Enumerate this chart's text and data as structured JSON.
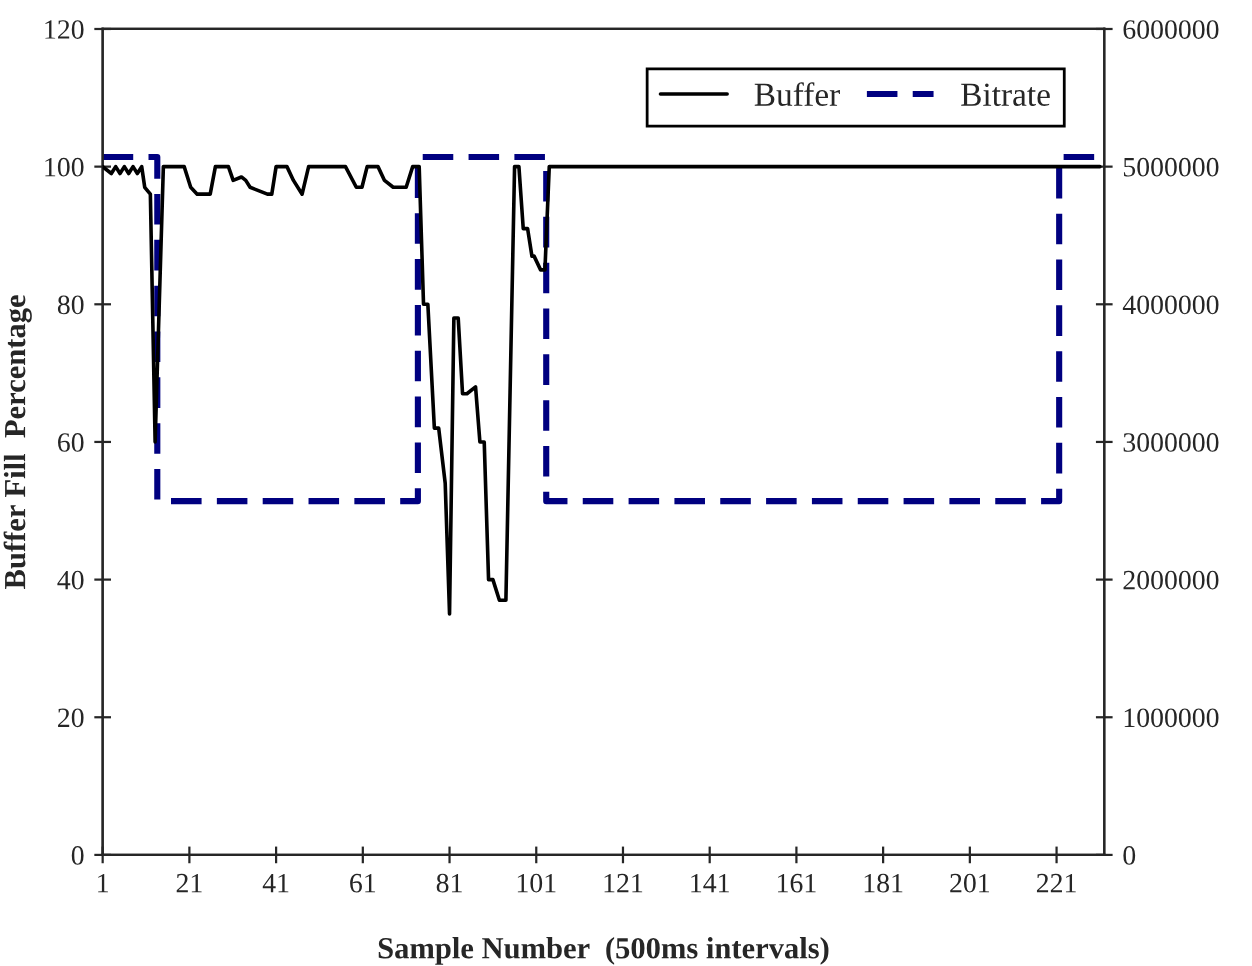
{
  "chart_data": {
    "type": "line",
    "xlabel": "Sample Number  (500ms intervals)",
    "ylabel": "Buffer Fill  Percentage",
    "xlim": [
      1,
      232
    ],
    "xticks": [
      1,
      21,
      41,
      61,
      81,
      101,
      121,
      141,
      161,
      181,
      201,
      221
    ],
    "ylim": [
      0,
      120
    ],
    "yticks": [
      0,
      20,
      40,
      60,
      80,
      100,
      120
    ],
    "y2lim": [
      0,
      6000000
    ],
    "y2ticks": [
      0,
      1000000,
      2000000,
      3000000,
      4000000,
      5000000,
      6000000
    ],
    "grid": false,
    "legend": "top right",
    "series": [
      {
        "name": "Buffer",
        "color": "#000000",
        "line_style": "solid",
        "x": [
          1,
          3,
          4,
          5,
          6,
          7,
          8,
          9,
          10,
          10.7,
          12,
          13.1,
          15,
          19.8,
          21.3,
          22.8,
          25.8,
          27,
          30,
          31.1,
          33,
          34,
          35,
          39,
          40,
          41,
          43.5,
          45,
          47,
          48.5,
          57,
          59.5,
          60.8,
          62,
          64.5,
          66,
          68,
          71,
          72.5,
          74,
          75,
          76,
          77.5,
          78.5,
          80,
          81,
          82,
          83,
          84,
          85,
          87,
          88,
          89,
          90,
          91,
          92.5,
          94,
          96,
          97,
          98,
          99,
          100,
          100.5,
          102,
          103,
          104,
          231
        ],
        "values": [
          100,
          99,
          100,
          99,
          100,
          99,
          100,
          99,
          100,
          97,
          96,
          60,
          100,
          100,
          97,
          96,
          96,
          100,
          100,
          98,
          98.5,
          98,
          97,
          96,
          96,
          100,
          100,
          98,
          96,
          100,
          100,
          97,
          97,
          100,
          100,
          98,
          97,
          97,
          100,
          100,
          80,
          80,
          62,
          62,
          54,
          35,
          78,
          78,
          67,
          67,
          68,
          60,
          60,
          40,
          40,
          37,
          37,
          100,
          100,
          91,
          91,
          87,
          87,
          85,
          85,
          100,
          100
        ]
      },
      {
        "name": "Bitrate",
        "color": "#000080",
        "axis": "y2",
        "line_style": "dashed",
        "x": [
          1,
          13.6,
          13.6,
          73.7,
          73.7,
          103.3,
          103.3,
          221.6,
          221.6,
          231
        ],
        "values": [
          5070000,
          5070000,
          2570000,
          2570000,
          5070000,
          5070000,
          2570000,
          2570000,
          5070000,
          5070000
        ]
      }
    ]
  }
}
